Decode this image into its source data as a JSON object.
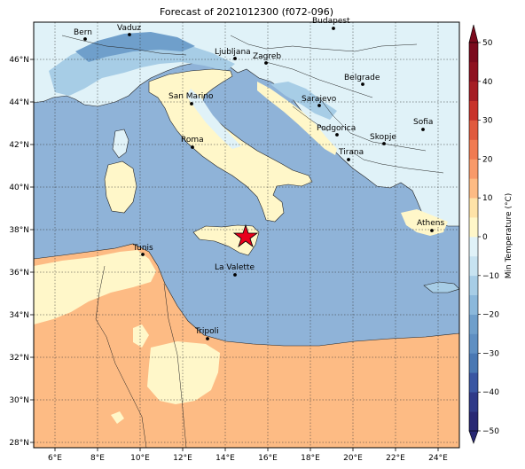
{
  "title": "Forecast of 2021012300 (f072-096)",
  "lon_ticks": [
    "6°E",
    "8°E",
    "10°E",
    "12°E",
    "14°E",
    "16°E",
    "18°E",
    "20°E",
    "22°E",
    "24°E"
  ],
  "lat_ticks": [
    "28°N",
    "30°N",
    "32°N",
    "34°N",
    "36°N",
    "38°N",
    "40°N",
    "42°N",
    "44°N",
    "46°N"
  ],
  "colorbar": {
    "label": "Min Temperature (°C)",
    "ticks": [
      "−50",
      "−40",
      "−30",
      "−20",
      "−10",
      "0",
      "10",
      "20",
      "30",
      "40",
      "50"
    ],
    "colors": [
      "#282874",
      "#3a4a9a",
      "#4a78b3",
      "#6f9fcb",
      "#a7cde6",
      "#e0f2f8",
      "#fff7c9",
      "#fdbb84",
      "#f07b52",
      "#c8322a",
      "#7b0a1d"
    ]
  },
  "cities": [
    {
      "name": "Bern"
    },
    {
      "name": "Vaduz"
    },
    {
      "name": "Budapest"
    },
    {
      "name": "Ljubljana"
    },
    {
      "name": "Zagreb"
    },
    {
      "name": "Belgrade"
    },
    {
      "name": "San Marino"
    },
    {
      "name": "Sarajevo"
    },
    {
      "name": "Sofia"
    },
    {
      "name": "Podgorica"
    },
    {
      "name": "Skopje"
    },
    {
      "name": "Roma"
    },
    {
      "name": "Tirana"
    },
    {
      "name": "Athens"
    },
    {
      "name": "Tunis"
    },
    {
      "name": "La Valette"
    },
    {
      "name": "Tripoli"
    }
  ],
  "marker": {
    "type": "star",
    "color": "#e8001c"
  }
}
